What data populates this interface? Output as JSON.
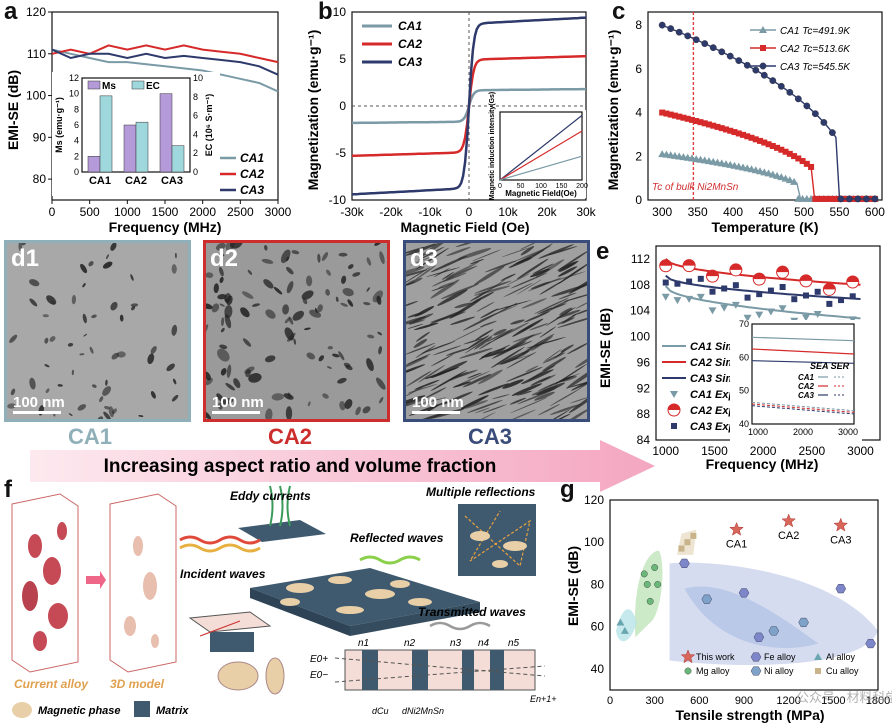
{
  "panels": {
    "a": {
      "letter": "a",
      "ylabel": "EMI-SE (dB)",
      "xlabel": "Frequency (MHz)",
      "legend": [
        "CA1",
        "CA2",
        "CA3"
      ],
      "inset": {
        "legend": [
          "Ms",
          "EC"
        ],
        "ylabel_left": "Ms (emu·g⁻¹)",
        "ylabel_right": "EC (10⁶ S·m⁻¹)"
      }
    },
    "b": {
      "letter": "b",
      "ylabel": "Magnetization (emu·g⁻¹)",
      "xlabel": "Magnetic Field (Oe)",
      "legend": [
        "CA1",
        "CA2",
        "CA3"
      ],
      "inset": {
        "ylabel": "Magnetic induction intensity(Gs)",
        "xlabel": "Magnetic Field(Oe)"
      }
    },
    "c": {
      "letter": "c",
      "ylabel": "Magnetization (emu·g⁻¹)",
      "xlabel": "Temperature (K)",
      "legend": [
        "CA1 Tc=491.9K",
        "CA2 Tc=513.6K",
        "CA3 Tc=545.5K"
      ],
      "annotation": "Tc of bulk Ni2MnSn"
    },
    "d": {
      "images": [
        {
          "label": "d1",
          "scale": "100 nm",
          "name": "CA1"
        },
        {
          "label": "d2",
          "scale": "100 nm",
          "name": "CA2"
        },
        {
          "label": "d3",
          "scale": "100 nm",
          "name": "CA3"
        }
      ],
      "arrow_text": "Increasing aspect ratio and volume fraction"
    },
    "e": {
      "letter": "e",
      "ylabel": "EMI-SE (dB)",
      "xlabel": "Frequency (MHz)",
      "legend": [
        "CA1 Sim.",
        "CA2 Sim.",
        "CA3 Sim.",
        "CA1 Exp.",
        "CA2 Exp.",
        "CA3 Exp."
      ],
      "inset": {
        "legend_head": "SEA SER",
        "legend": [
          "CA1",
          "CA2",
          "CA3"
        ]
      }
    },
    "f": {
      "letter": "f",
      "labels": {
        "eddy": "Eddy currents",
        "multi": "Multiple reflections",
        "reflected": "Reflected waves",
        "incident": "Incident waves",
        "transmitted": "Transmitted waves",
        "current_alloy": "Current alloy",
        "model3d": "3D model",
        "magnetic_phase": "Magnetic phase",
        "matrix": "Matrix",
        "layers": [
          "n1",
          "n2",
          "n3",
          "n4",
          "n5"
        ],
        "d_cu": "dCu",
        "d_ni": "dNi2MnSn",
        "E0p": "E0+",
        "E0m": "E0−",
        "Enp": "En+1+"
      }
    },
    "g": {
      "letter": "g",
      "ylabel": "EMI-SE (dB)",
      "xlabel": "Tensile strength (MPa)",
      "points": [
        "CA1",
        "CA2",
        "CA3"
      ],
      "legend": [
        "This work",
        "Fe alloy",
        "Al alloy",
        "Mg alloy",
        "Ni alloy",
        "Cu alloy"
      ],
      "watermark": "公众号 · 材料科学与工程"
    }
  },
  "chart_data": [
    {
      "id": "a",
      "type": "line",
      "xlabel": "Frequency (MHz)",
      "ylabel": "EMI-SE (dB)",
      "xlim": [
        0,
        3000
      ],
      "ylim": [
        75,
        120
      ],
      "x": [
        0,
        250,
        500,
        750,
        1000,
        1250,
        1500,
        1750,
        2000,
        2250,
        2500,
        2750,
        3000
      ],
      "series": [
        {
          "name": "CA1",
          "color": "#7a9aa6",
          "values": [
            111,
            110,
            109,
            108,
            108,
            107.5,
            107,
            106.5,
            106,
            105,
            104,
            103,
            101
          ]
        },
        {
          "name": "CA2",
          "color": "#d62a2a",
          "values": [
            110,
            111,
            110,
            112,
            111,
            112,
            111,
            112,
            111,
            110.5,
            110,
            109,
            108
          ]
        },
        {
          "name": "CA3",
          "color": "#2d3a6b",
          "values": [
            111,
            109,
            110,
            110,
            109,
            110,
            109,
            109.5,
            109,
            108.5,
            108,
            107,
            105
          ]
        }
      ],
      "inset": {
        "type": "bar",
        "categories": [
          "CA1",
          "CA2",
          "CA3"
        ],
        "series": [
          {
            "name": "Ms",
            "values": [
              2,
              6,
              10
            ]
          },
          {
            "name": "EC",
            "values": [
              8.1,
              5.3,
              2.8
            ]
          }
        ]
      }
    },
    {
      "id": "b",
      "type": "line",
      "xlabel": "Magnetic Field (Oe)",
      "ylabel": "Magnetization (emu·g⁻¹)",
      "xlim": [
        -30000,
        30000
      ],
      "ylim": [
        -10,
        10
      ],
      "x_ticks": [
        "-30k",
        "-20k",
        "-10k",
        "0",
        "10k",
        "20k",
        "30k"
      ],
      "series": [
        {
          "name": "CA1",
          "color": "#7a9aa6",
          "ms": 1.8
        },
        {
          "name": "CA2",
          "color": "#d62a2a",
          "ms": 5.3
        },
        {
          "name": "CA3",
          "color": "#2d3a6b",
          "ms": 9.4
        }
      ]
    },
    {
      "id": "c",
      "type": "line",
      "xlabel": "Temperature (K)",
      "ylabel": "Magnetization (emu·g⁻¹)",
      "xlim": [
        280,
        610
      ],
      "ylim": [
        0,
        8.6
      ],
      "series": [
        {
          "name": "CA1",
          "color": "#7a9aa6",
          "tc": 491.9,
          "m0": 2.1
        },
        {
          "name": "CA2",
          "color": "#d62a2a",
          "tc": 513.6,
          "m0": 4.0
        },
        {
          "name": "CA3",
          "color": "#2d3a6b",
          "tc": 545.5,
          "m0": 8.0
        }
      ],
      "tc_bulk": 344
    },
    {
      "id": "e",
      "type": "line",
      "xlabel": "Frequency (MHz)",
      "ylabel": "EMI-SE (dB)",
      "xlim": [
        900,
        3200
      ],
      "ylim": [
        84,
        114
      ],
      "series": [
        {
          "name": "CA1 Sim.",
          "color": "#7a9aa6",
          "values": [
            [
              1000,
              107.8
            ],
            [
              3000,
              102.8
            ]
          ]
        },
        {
          "name": "CA2 Sim.",
          "color": "#d62a2a",
          "values": [
            [
              1000,
              112
            ],
            [
              3000,
              108
            ]
          ]
        },
        {
          "name": "CA3 Sim.",
          "color": "#2d3a6b",
          "values": [
            [
              1000,
              109.4
            ],
            [
              3000,
              105.8
            ]
          ]
        }
      ]
    },
    {
      "id": "g",
      "type": "scatter",
      "xlabel": "Tensile strength (MPa)",
      "ylabel": "EMI-SE (dB)",
      "xlim": [
        0,
        1800
      ],
      "ylim": [
        30,
        120
      ],
      "series": [
        {
          "name": "This work",
          "color": "#d8675a",
          "values": [
            [
              850,
              106
            ],
            [
              1200,
              110
            ],
            [
              1550,
              108
            ]
          ]
        },
        {
          "name": "Mg alloy",
          "color": "#6ab77a",
          "values": [
            [
              230,
              85
            ],
            [
              250,
              80
            ],
            [
              270,
              72
            ],
            [
              300,
              88
            ],
            [
              320,
              80
            ]
          ]
        },
        {
          "name": "Al alloy",
          "color": "#6aa6b0",
          "values": [
            [
              70,
              62
            ],
            [
              100,
              58
            ]
          ]
        },
        {
          "name": "Cu alloy",
          "color": "#c8b38a",
          "values": [
            [
              480,
              97
            ],
            [
              520,
              100
            ],
            [
              560,
              103
            ]
          ]
        },
        {
          "name": "Fe alloy",
          "color": "#7c86c8",
          "values": [
            [
              500,
              90
            ],
            [
              900,
              76
            ],
            [
              1000,
              55
            ],
            [
              1550,
              78
            ],
            [
              1750,
              52
            ]
          ]
        },
        {
          "name": "Ni alloy",
          "color": "#7fa3c8",
          "values": [
            [
              650,
              73
            ],
            [
              1100,
              58
            ],
            [
              1300,
              62
            ]
          ]
        }
      ]
    }
  ]
}
